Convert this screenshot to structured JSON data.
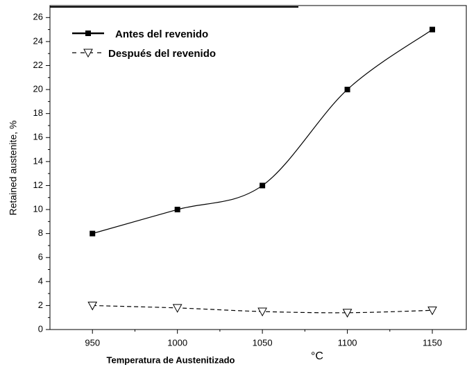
{
  "chart_data": {
    "type": "line",
    "xlabel": "Temperatura de Austenitizado",
    "xunit": "°C",
    "ylabel": "Retained austenite, %",
    "x": [
      950,
      1000,
      1050,
      1100,
      1150
    ],
    "series": [
      {
        "name": "Antes del revenido",
        "color": "#000000",
        "marker": "square",
        "dash": "solid",
        "values": [
          8,
          10,
          12,
          20,
          25
        ]
      },
      {
        "name": "Después del revenido",
        "color": "#000000",
        "marker": "triangle-down",
        "dash": "dashed",
        "values": [
          2,
          1.8,
          1.5,
          1.4,
          1.6
        ]
      }
    ],
    "xlim": [
      925,
      1170
    ],
    "xticks": [
      950,
      1000,
      1050,
      1100,
      1150
    ],
    "ylim": [
      0,
      27
    ],
    "yticks": [
      0,
      2,
      4,
      6,
      8,
      10,
      12,
      14,
      16,
      18,
      20,
      22,
      24,
      26
    ],
    "legend": "upper-left",
    "grid": false
  }
}
